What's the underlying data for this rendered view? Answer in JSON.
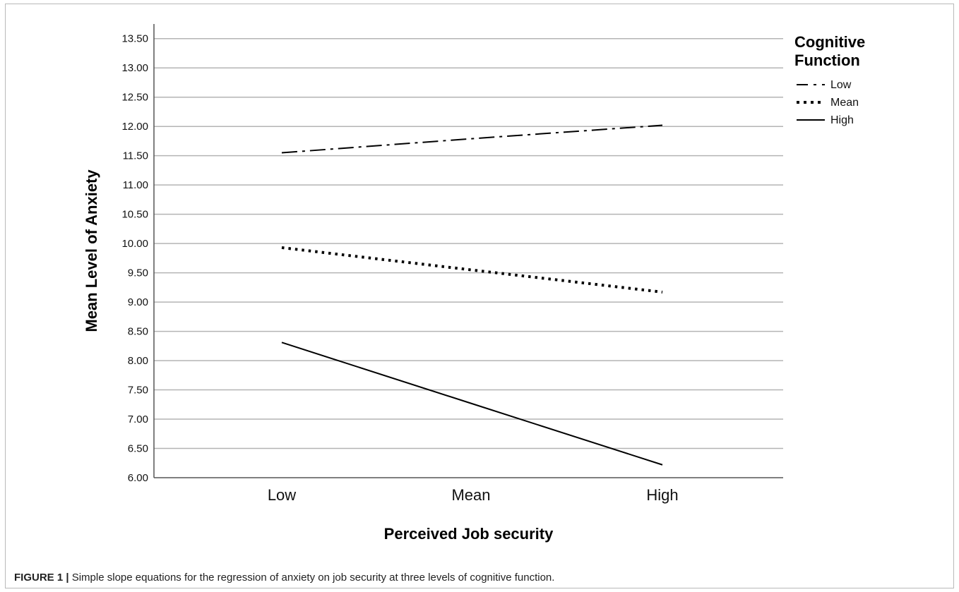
{
  "caption": {
    "figure_number": "FIGURE 1 |",
    "text": " Simple slope equations for the regression of anxiety on job security at three levels of cognitive function."
  },
  "chart_data": {
    "type": "line",
    "xlabel": "Perceived Job security",
    "ylabel": "Mean Level of Anxiety",
    "categories": [
      "Low",
      "Mean",
      "High"
    ],
    "ylim": [
      6.0,
      13.75
    ],
    "yticks": [
      "6.00",
      "6.50",
      "7.00",
      "7.50",
      "8.00",
      "8.50",
      "9.00",
      "9.50",
      "10.00",
      "10.50",
      "11.00",
      "11.50",
      "12.00",
      "12.50",
      "13.00",
      "13.50"
    ],
    "grid": true,
    "legend": {
      "title": "Cognitive Function",
      "position": "top-right"
    },
    "series": [
      {
        "name": "Low",
        "style": "dash-dot",
        "values": [
          11.55,
          11.79,
          12.02
        ]
      },
      {
        "name": "Mean",
        "style": "dotted",
        "values": [
          9.93,
          9.55,
          9.17
        ]
      },
      {
        "name": "High",
        "style": "solid",
        "values": [
          8.31,
          7.27,
          6.22
        ]
      }
    ],
    "colors": {
      "line": "#000000",
      "grid": "#b4b4b4",
      "axis": "#555555"
    }
  }
}
